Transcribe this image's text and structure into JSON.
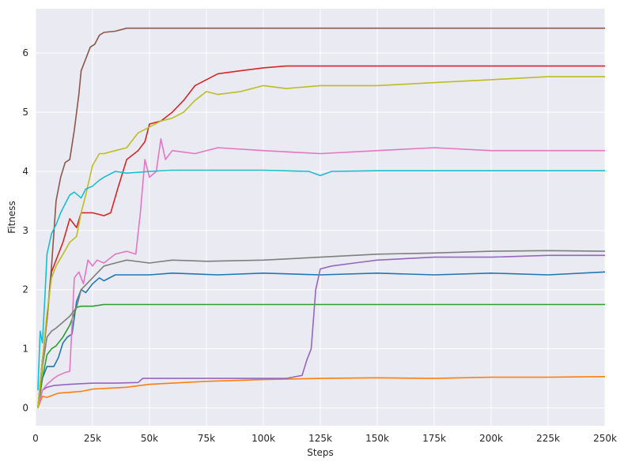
{
  "chart_data": {
    "type": "line",
    "xlabel": "Steps",
    "ylabel": "Fitness",
    "xlim": [
      0,
      250000
    ],
    "ylim": [
      -0.3,
      6.75
    ],
    "grid": true,
    "legend": "none",
    "xticks": [
      {
        "value": 0,
        "label": "0"
      },
      {
        "value": 25000,
        "label": "25k"
      },
      {
        "value": 50000,
        "label": "50k"
      },
      {
        "value": 75000,
        "label": "75k"
      },
      {
        "value": 100000,
        "label": "100k"
      },
      {
        "value": 125000,
        "label": "125k"
      },
      {
        "value": 150000,
        "label": "150k"
      },
      {
        "value": 175000,
        "label": "175k"
      },
      {
        "value": 200000,
        "label": "200k"
      },
      {
        "value": 225000,
        "label": "225k"
      },
      {
        "value": 250000,
        "label": "250k"
      }
    ],
    "yticks": [
      {
        "value": 0,
        "label": "0"
      },
      {
        "value": 1,
        "label": "1"
      },
      {
        "value": 2,
        "label": "2"
      },
      {
        "value": 3,
        "label": "3"
      },
      {
        "value": 4,
        "label": "4"
      },
      {
        "value": 5,
        "label": "5"
      },
      {
        "value": 6,
        "label": "6"
      }
    ],
    "series": [
      {
        "color": "#1f77b4",
        "x": [
          1000,
          3000,
          5000,
          8000,
          10000,
          12000,
          14000,
          16000,
          18000,
          20000,
          22000,
          25000,
          28000,
          30000,
          35000,
          40000,
          50000,
          60000,
          80000,
          100000,
          125000,
          150000,
          175000,
          200000,
          225000,
          250000
        ],
        "y": [
          0,
          0.5,
          0.7,
          0.7,
          0.85,
          1.1,
          1.2,
          1.25,
          1.8,
          2.0,
          1.95,
          2.1,
          2.2,
          2.15,
          2.25,
          2.25,
          2.25,
          2.28,
          2.25,
          2.28,
          2.25,
          2.28,
          2.25,
          2.28,
          2.25,
          2.3
        ]
      },
      {
        "color": "#ff7f0e",
        "x": [
          1000,
          3000,
          5000,
          10000,
          20000,
          25000,
          30000,
          40000,
          50000,
          60000,
          75000,
          100000,
          125000,
          150000,
          175000,
          200000,
          225000,
          250000
        ],
        "y": [
          0,
          0.2,
          0.18,
          0.25,
          0.28,
          0.32,
          0.33,
          0.35,
          0.4,
          0.42,
          0.45,
          0.48,
          0.5,
          0.51,
          0.5,
          0.52,
          0.52,
          0.53
        ]
      },
      {
        "color": "#2ca02c",
        "x": [
          1000,
          3000,
          5000,
          7000,
          9000,
          12000,
          15000,
          18000,
          20000,
          25000,
          30000,
          40000,
          60000,
          80000,
          100000,
          125000,
          150000,
          175000,
          200000,
          225000,
          250000
        ],
        "y": [
          0,
          0.5,
          0.9,
          1.0,
          1.05,
          1.2,
          1.4,
          1.7,
          1.72,
          1.72,
          1.75,
          1.75,
          1.75,
          1.75,
          1.75,
          1.75,
          1.75,
          1.75,
          1.75,
          1.75,
          1.75
        ]
      },
      {
        "color": "#d62728",
        "x": [
          1000,
          3000,
          5000,
          7000,
          9000,
          12000,
          15000,
          18000,
          20000,
          25000,
          30000,
          33000,
          36000,
          40000,
          45000,
          48000,
          50000,
          55000,
          60000,
          65000,
          70000,
          75000,
          80000,
          90000,
          100000,
          110000,
          125000,
          150000,
          175000,
          200000,
          225000,
          250000
        ],
        "y": [
          0,
          0.8,
          1.5,
          2.3,
          2.5,
          2.8,
          3.2,
          3.05,
          3.3,
          3.3,
          3.25,
          3.3,
          3.7,
          4.2,
          4.35,
          4.5,
          4.8,
          4.85,
          5.0,
          5.2,
          5.45,
          5.55,
          5.65,
          5.7,
          5.75,
          5.78,
          5.78,
          5.78,
          5.78,
          5.78,
          5.78,
          5.78
        ]
      },
      {
        "color": "#9467bd",
        "x": [
          1000,
          3000,
          5000,
          8000,
          15000,
          25000,
          35000,
          45000,
          47000,
          50000,
          75000,
          100000,
          110000,
          117000,
          119000,
          121000,
          123000,
          125000,
          130000,
          140000,
          150000,
          175000,
          200000,
          225000,
          250000
        ],
        "y": [
          0,
          0.3,
          0.35,
          0.38,
          0.4,
          0.42,
          0.42,
          0.43,
          0.5,
          0.5,
          0.5,
          0.5,
          0.5,
          0.55,
          0.8,
          1.0,
          2.0,
          2.35,
          2.4,
          2.45,
          2.5,
          2.55,
          2.55,
          2.58,
          2.58
        ]
      },
      {
        "color": "#8c564b",
        "x": [
          1000,
          3000,
          5000,
          7000,
          9000,
          11000,
          13000,
          15000,
          17000,
          19000,
          20000,
          22000,
          24000,
          26000,
          28000,
          30000,
          35000,
          40000,
          50000,
          75000,
          100000,
          125000,
          150000,
          175000,
          200000,
          225000,
          250000
        ],
        "y": [
          0,
          0.8,
          1.5,
          2.4,
          3.5,
          3.9,
          4.15,
          4.2,
          4.7,
          5.3,
          5.7,
          5.9,
          6.1,
          6.15,
          6.3,
          6.35,
          6.37,
          6.42,
          6.42,
          6.42,
          6.42,
          6.42,
          6.42,
          6.42,
          6.42,
          6.42,
          6.42
        ]
      },
      {
        "color": "#e377c2",
        "x": [
          1000,
          3000,
          5000,
          8000,
          10000,
          13000,
          15000,
          17000,
          19000,
          21000,
          23000,
          25000,
          27000,
          30000,
          35000,
          40000,
          44000,
          46000,
          48000,
          50000,
          53000,
          55000,
          57000,
          60000,
          70000,
          80000,
          100000,
          125000,
          150000,
          175000,
          200000,
          225000,
          250000
        ],
        "y": [
          0,
          0.3,
          0.4,
          0.5,
          0.55,
          0.6,
          0.62,
          2.2,
          2.3,
          2.1,
          2.5,
          2.4,
          2.5,
          2.45,
          2.6,
          2.65,
          2.6,
          3.3,
          4.2,
          3.9,
          4.0,
          4.55,
          4.2,
          4.35,
          4.3,
          4.4,
          4.35,
          4.3,
          4.35,
          4.4,
          4.35,
          4.35,
          4.35
        ]
      },
      {
        "color": "#7f7f7f",
        "x": [
          1000,
          3000,
          5000,
          7000,
          9000,
          12000,
          15000,
          18000,
          20000,
          25000,
          30000,
          35000,
          40000,
          50000,
          60000,
          75000,
          100000,
          125000,
          150000,
          175000,
          200000,
          225000,
          250000
        ],
        "y": [
          0,
          0.7,
          1.2,
          1.3,
          1.35,
          1.45,
          1.55,
          1.7,
          2.0,
          2.2,
          2.4,
          2.45,
          2.5,
          2.45,
          2.5,
          2.48,
          2.5,
          2.55,
          2.6,
          2.62,
          2.65,
          2.66,
          2.65
        ]
      },
      {
        "color": "#bcbd22",
        "x": [
          1000,
          3000,
          5000,
          7000,
          9000,
          12000,
          15000,
          18000,
          20000,
          22000,
          25000,
          28000,
          30000,
          35000,
          40000,
          45000,
          50000,
          55000,
          60000,
          65000,
          70000,
          75000,
          80000,
          90000,
          100000,
          110000,
          125000,
          150000,
          175000,
          200000,
          225000,
          250000
        ],
        "y": [
          0,
          0.8,
          1.6,
          2.2,
          2.4,
          2.6,
          2.8,
          2.9,
          3.3,
          3.6,
          4.1,
          4.3,
          4.3,
          4.35,
          4.4,
          4.65,
          4.75,
          4.85,
          4.9,
          5.0,
          5.2,
          5.35,
          5.3,
          5.35,
          5.45,
          5.4,
          5.45,
          5.45,
          5.5,
          5.55,
          5.6,
          5.6
        ]
      },
      {
        "color": "#17becf",
        "x": [
          1000,
          2000,
          3000,
          4000,
          5000,
          7000,
          9000,
          11000,
          13000,
          15000,
          17000,
          20000,
          22000,
          25000,
          28000,
          30000,
          35000,
          40000,
          50000,
          60000,
          75000,
          100000,
          120000,
          125000,
          130000,
          150000,
          175000,
          200000,
          225000,
          250000
        ],
        "y": [
          0.3,
          1.3,
          1.1,
          1.8,
          2.6,
          2.95,
          3.1,
          3.3,
          3.45,
          3.6,
          3.65,
          3.55,
          3.7,
          3.75,
          3.85,
          3.9,
          4.0,
          3.97,
          4.0,
          4.02,
          4.02,
          4.02,
          4.0,
          3.93,
          4.0,
          4.01,
          4.01,
          4.01,
          4.01,
          4.01
        ]
      }
    ]
  }
}
